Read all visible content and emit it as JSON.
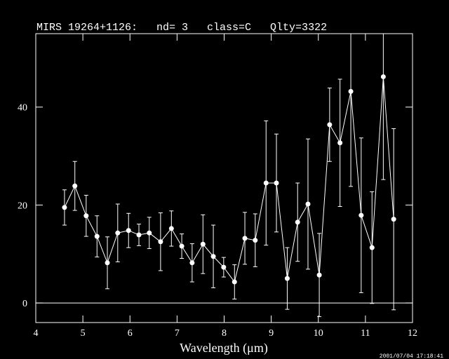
{
  "chart_data": {
    "type": "errorbar-line",
    "title": "MIRS 19264+1126:   nd= 3   class=C   Qlty=3322",
    "x_label": "Wavelength (μm)",
    "timestamp": "2001/07/04 17:18:41",
    "color": "#ffffff",
    "x": [
      4.61,
      4.83,
      5.07,
      5.3,
      5.52,
      5.74,
      5.97,
      6.19,
      6.41,
      6.65,
      6.88,
      7.1,
      7.32,
      7.55,
      7.77,
      7.99,
      8.22,
      8.44,
      8.66,
      8.89,
      9.11,
      9.34,
      9.56,
      9.78,
      10.02,
      10.24,
      10.46,
      10.69,
      10.91,
      11.14,
      11.38,
      11.6
    ],
    "values": [
      19.5,
      23.9,
      17.8,
      13.6,
      8.2,
      14.3,
      14.8,
      13.9,
      14.3,
      12.5,
      15.2,
      11.6,
      8.2,
      12.0,
      9.5,
      7.3,
      4.3,
      13.2,
      12.8,
      24.5,
      24.5,
      5.0,
      16.5,
      20.2,
      5.7,
      36.4,
      32.7,
      43.2,
      17.9,
      11.3,
      46.2,
      17.1
    ],
    "errors": [
      3.6,
      5.0,
      4.2,
      4.2,
      5.3,
      5.9,
      3.5,
      2.2,
      3.2,
      5.9,
      3.6,
      2.5,
      3.9,
      6.0,
      6.4,
      2.0,
      3.5,
      5.3,
      5.4,
      12.7,
      10.0,
      6.3,
      8.0,
      13.3,
      8.5,
      7.5,
      13.0,
      19.4,
      15.8,
      11.4,
      21.0,
      18.5
    ],
    "xlim": [
      4,
      12
    ],
    "ylim": [
      -4,
      55
    ],
    "xticks": [
      4,
      5,
      6,
      7,
      8,
      9,
      10,
      11,
      12
    ],
    "yticks": [
      0,
      20,
      40
    ],
    "zero_line": true
  }
}
